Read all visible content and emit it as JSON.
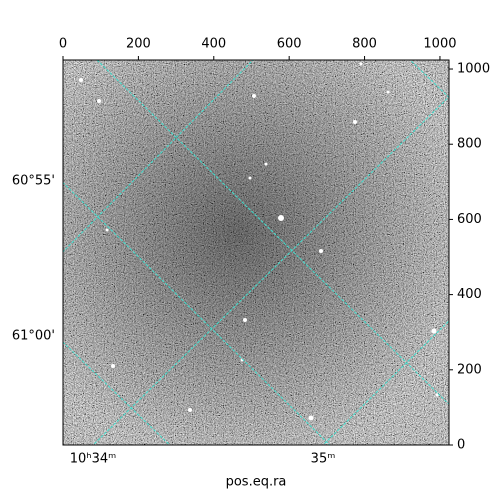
{
  "chart_data": {
    "type": "image",
    "xlim": [
      0,
      1024
    ],
    "ylim": [
      0,
      1024
    ],
    "xticks": [
      0,
      200,
      400,
      600,
      800,
      1000
    ],
    "yticks": [
      0,
      200,
      400,
      600,
      800,
      1000
    ],
    "ra_tick_labels": [
      "10ʰ34ᵐ",
      "35ᵐ"
    ],
    "dec_tick_labels": [
      "60°55'",
      "61°00'"
    ],
    "xlabel": "pos.eq.ra",
    "grid_color": "#40e0d0"
  }
}
